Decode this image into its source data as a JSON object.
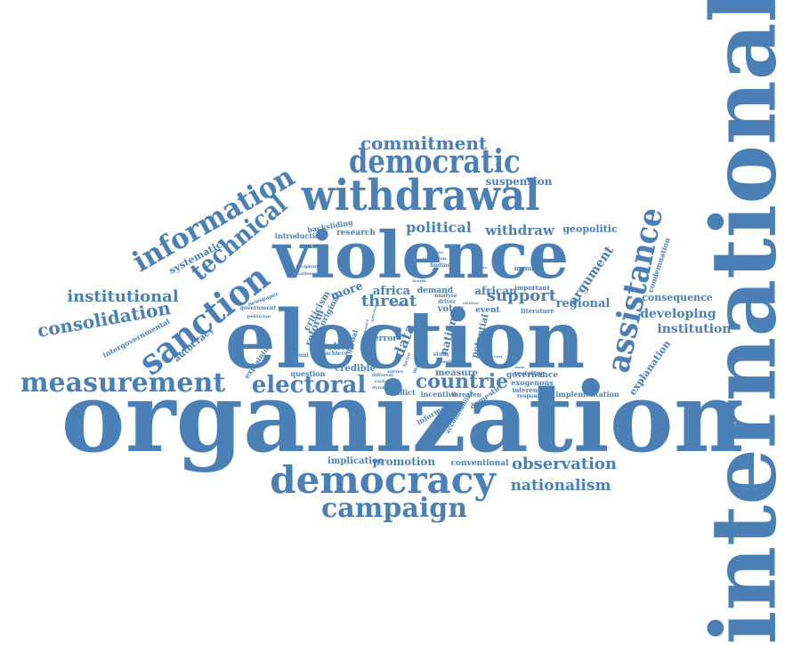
{
  "color": "#4a80b5",
  "background": "#ffffff",
  "words": [
    {
      "text": "international"
    },
    {
      "text": "organization"
    },
    {
      "text": "election"
    },
    {
      "text": "violence"
    },
    {
      "text": "withdrawal"
    },
    {
      "text": "democracy"
    },
    {
      "text": "democratic"
    },
    {
      "text": "measurement"
    },
    {
      "text": "assistance"
    },
    {
      "text": "sanction"
    },
    {
      "text": "technical"
    },
    {
      "text": "information"
    },
    {
      "text": "campaign"
    },
    {
      "text": "electoral"
    },
    {
      "text": "countrie"
    },
    {
      "text": "commitment"
    },
    {
      "text": "consolidation"
    },
    {
      "text": "institutional"
    },
    {
      "text": "observation"
    },
    {
      "text": "nationalism"
    },
    {
      "text": "promotion"
    },
    {
      "text": "implication"
    },
    {
      "text": "conventional"
    },
    {
      "text": "support"
    },
    {
      "text": "threat"
    },
    {
      "text": "political"
    },
    {
      "text": "withdraw"
    },
    {
      "text": "geopolitic"
    },
    {
      "text": "suspension"
    },
    {
      "text": "developing"
    },
    {
      "text": "institution"
    },
    {
      "text": "consequence"
    },
    {
      "text": "regional"
    },
    {
      "text": "argument"
    },
    {
      "text": "condemnation"
    },
    {
      "text": "explanation"
    },
    {
      "text": "autocracy"
    },
    {
      "text": "intergovernmental"
    },
    {
      "text": "reform"
    },
    {
      "text": "politic"
    },
    {
      "text": "data"
    },
    {
      "text": "africa"
    },
    {
      "text": "african"
    },
    {
      "text": "more"
    },
    {
      "text": "systematic"
    },
    {
      "text": "research"
    },
    {
      "text": "backsliding"
    },
    {
      "text": "introduction"
    },
    {
      "text": "governance"
    },
    {
      "text": "implementation"
    },
    {
      "text": "inference"
    },
    {
      "text": "exogenous"
    },
    {
      "text": "credible"
    },
    {
      "text": "question"
    },
    {
      "text": "measure"
    },
    {
      "text": "incentive"
    },
    {
      "text": "threaten"
    },
    {
      "text": "conflict"
    },
    {
      "text": "voter"
    },
    {
      "text": "event"
    },
    {
      "text": "literature"
    },
    {
      "text": "important"
    },
    {
      "text": "member"
    },
    {
      "text": "explaining"
    },
    {
      "text": "criticism"
    },
    {
      "text": "original"
    },
    {
      "text": "global"
    },
    {
      "text": "error"
    },
    {
      "text": "nation"
    },
    {
      "text": "potential"
    },
    {
      "text": "resisting"
    },
    {
      "text": "respondent"
    },
    {
      "text": "domestic"
    },
    {
      "text": "demand"
    },
    {
      "text": "informed"
    },
    {
      "text": "accountability"
    },
    {
      "text": "newspaper"
    },
    {
      "text": "government"
    },
    {
      "text": "politician"
    },
    {
      "text": "recipient"
    },
    {
      "text": "challenge"
    },
    {
      "text": "account"
    },
    {
      "text": "achieve"
    },
    {
      "text": "finding"
    },
    {
      "text": "driver"
    },
    {
      "text": "analyse"
    },
    {
      "text": "study"
    },
    {
      "text": "result"
    },
    {
      "text": "survey"
    },
    {
      "text": "leader"
    },
    {
      "text": "condition"
    },
    {
      "text": "different"
    },
    {
      "text": "variable"
    },
    {
      "text": "dynamic"
    },
    {
      "text": "perceive"
    },
    {
      "text": "influence"
    },
    {
      "text": "positive"
    },
    {
      "text": "many"
    },
    {
      "text": "factor"
    },
    {
      "text": "status"
    },
    {
      "text": "benefit"
    },
    {
      "text": "election"
    },
    {
      "text": "cost"
    },
    {
      "text": "context"
    },
    {
      "text": "issue"
    }
  ]
}
